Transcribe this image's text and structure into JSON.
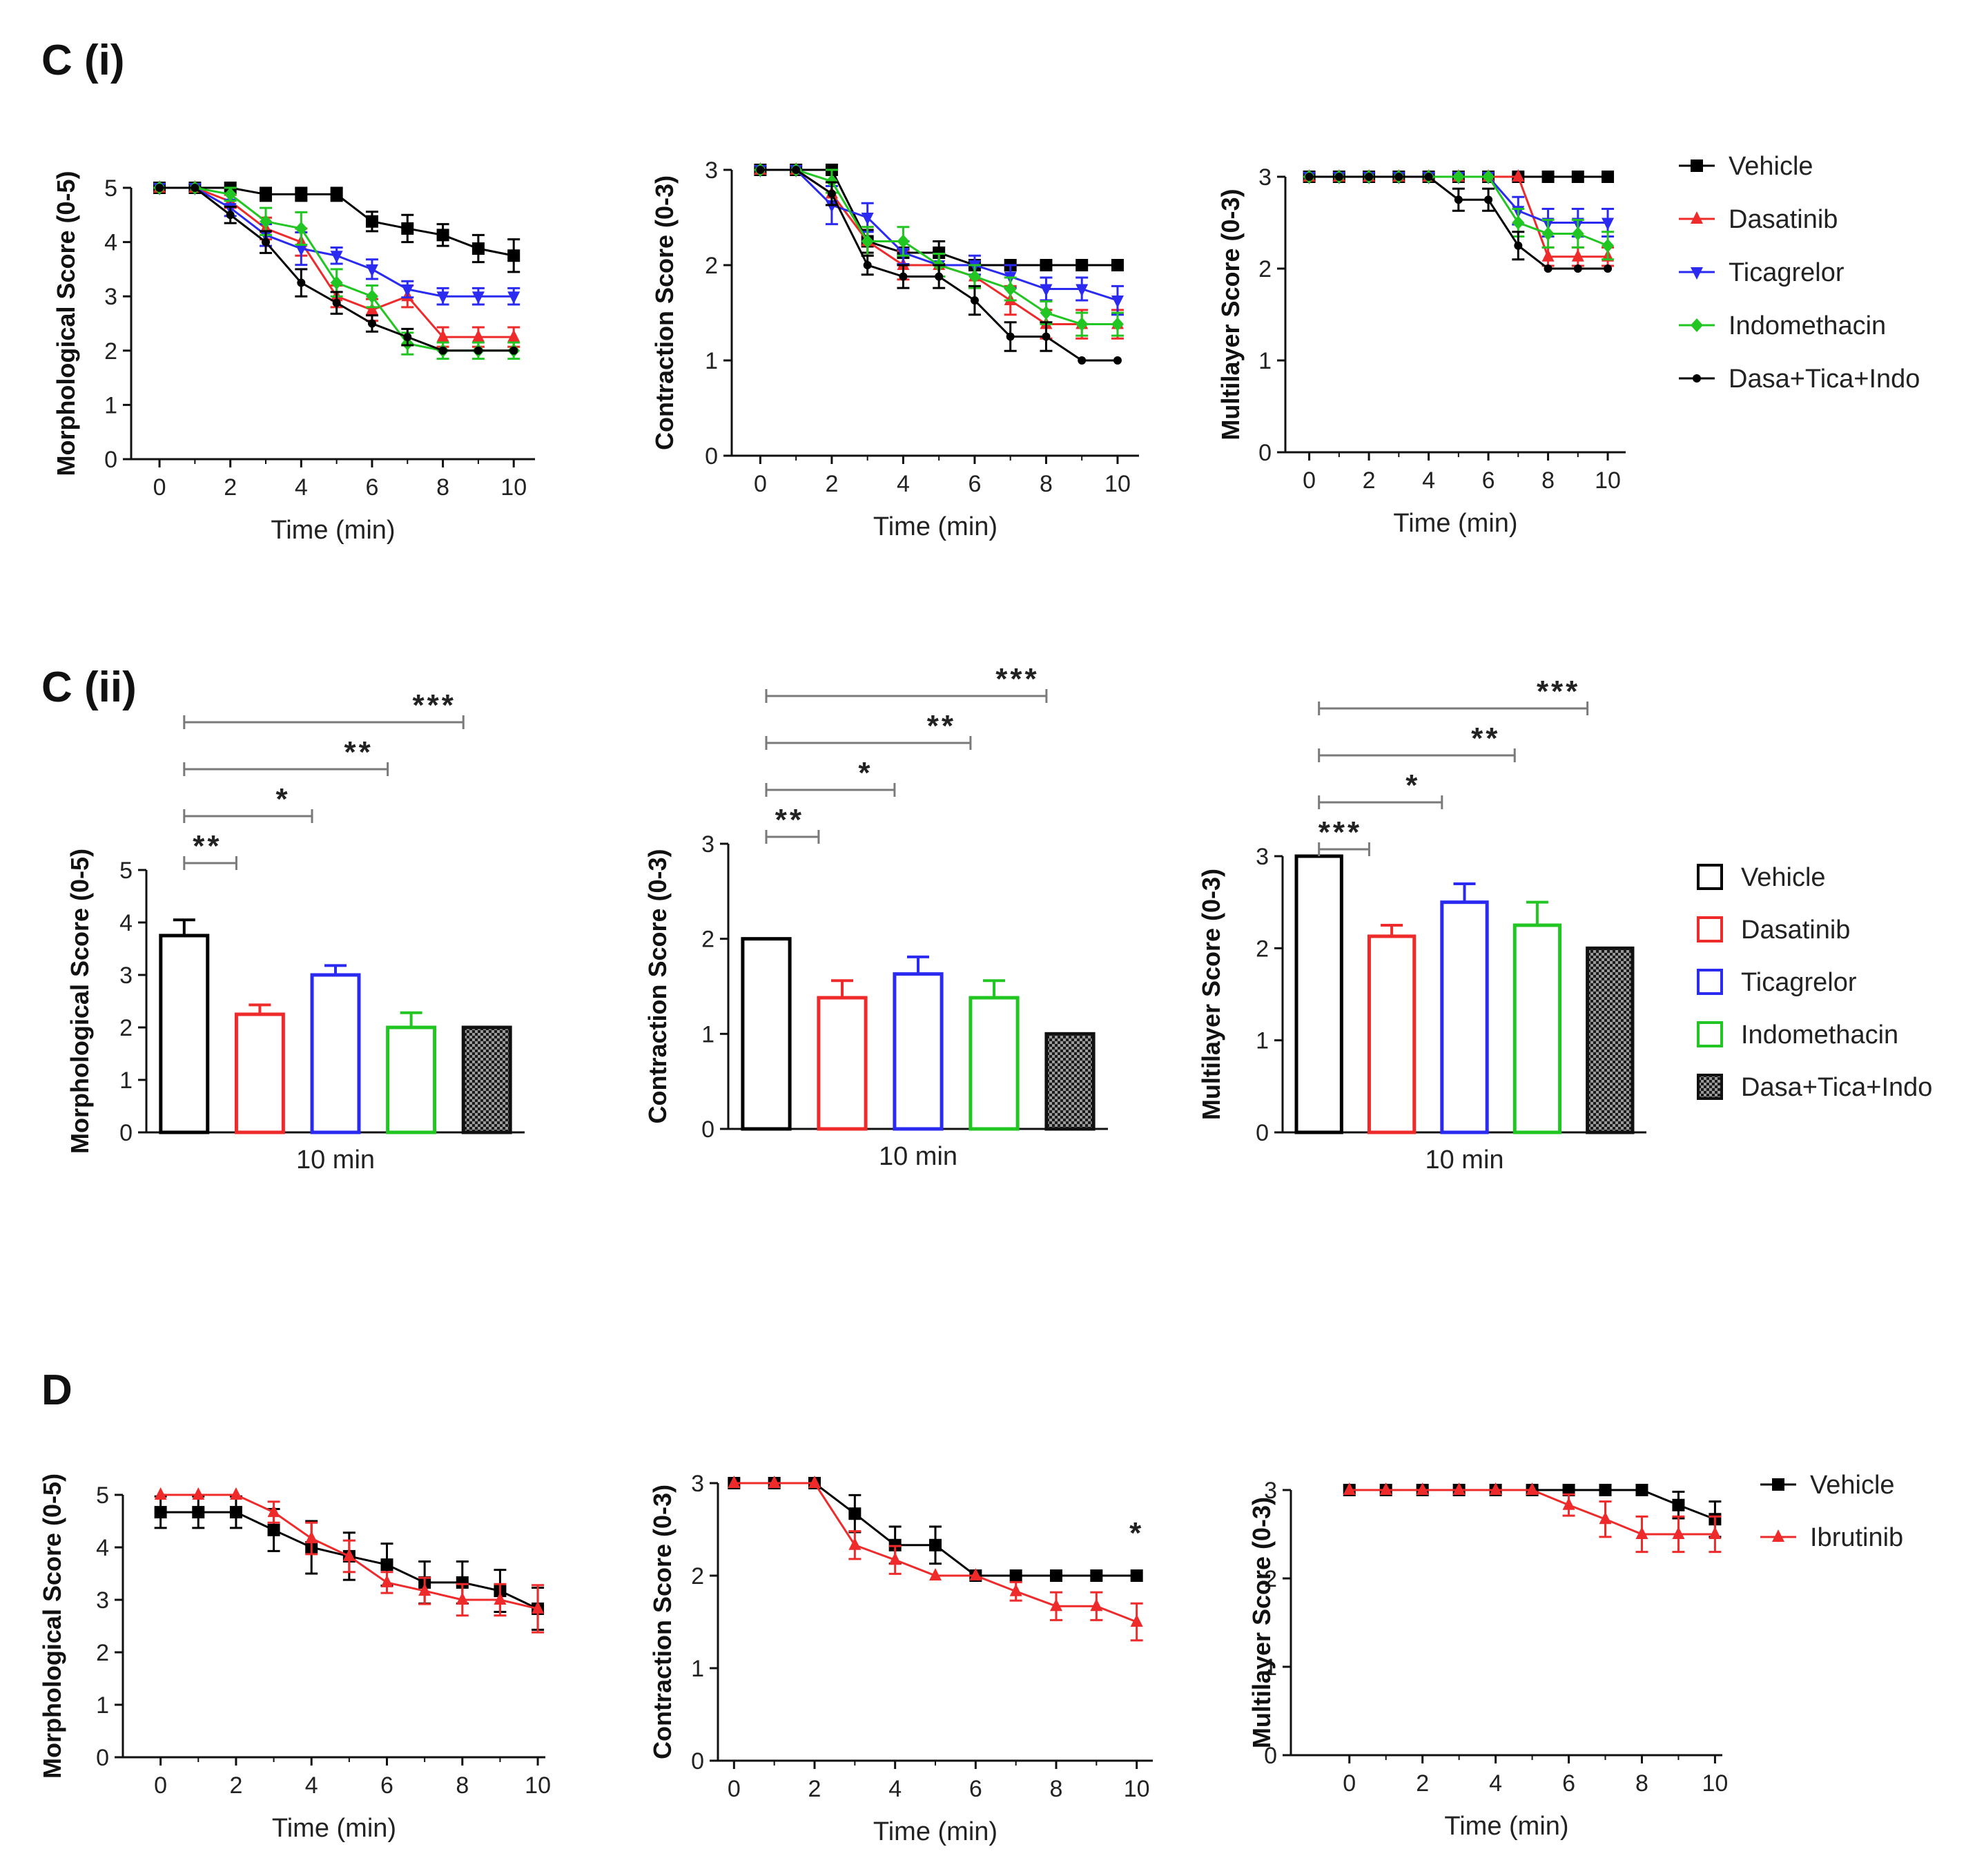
{
  "figure": {
    "panel_labels": [
      "C (i)",
      "C (ii)",
      "D"
    ]
  },
  "colors": {
    "Vehicle": "#000000",
    "Dasatinib": "#ee2a2a",
    "Ticagrelor": "#2a2af0",
    "Indomethacin": "#22c622",
    "Dasa+Tica+Indo": "#000000",
    "Ibrutinib": "#ee2a2a",
    "sigline": "#7a7a7a"
  },
  "chart_data": [
    {
      "id": "ci-morph",
      "type": "line",
      "title": "",
      "xlabel": "Time (min)",
      "ylabel": "Morphological Score (0-5)",
      "xlim": [
        -0.8,
        10.6
      ],
      "ylim": [
        0,
        5
      ],
      "xticks": [
        0,
        2,
        4,
        6,
        8,
        10
      ],
      "yticks": [
        0,
        1,
        2,
        3,
        4,
        5
      ],
      "x": [
        0,
        1,
        2,
        3,
        4,
        5,
        6,
        7,
        8,
        9,
        10
      ],
      "series": [
        {
          "name": "Vehicle",
          "marker": "square",
          "values": [
            5,
            5,
            5,
            4.88,
            4.88,
            4.88,
            4.38,
            4.25,
            4.13,
            3.88,
            3.75
          ],
          "errors": [
            0,
            0,
            0,
            0.12,
            0.12,
            0.12,
            0.18,
            0.25,
            0.2,
            0.25,
            0.3
          ]
        },
        {
          "name": "Dasatinib",
          "marker": "triangle",
          "values": [
            5,
            5,
            4.75,
            4.25,
            4.0,
            3.0,
            2.75,
            3.0,
            2.25,
            2.25,
            2.25
          ],
          "errors": [
            0,
            0,
            0.12,
            0.2,
            0.25,
            0.2,
            0.2,
            0.2,
            0.18,
            0.18,
            0.18
          ]
        },
        {
          "name": "Ticagrelor",
          "marker": "triangle-down",
          "values": [
            5,
            5,
            4.63,
            4.13,
            3.88,
            3.75,
            3.5,
            3.13,
            3.0,
            3.0,
            3.0
          ],
          "errors": [
            0,
            0,
            0.15,
            0.2,
            0.3,
            0.15,
            0.18,
            0.15,
            0.15,
            0.15,
            0.15
          ]
        },
        {
          "name": "Indomethacin",
          "marker": "diamond",
          "values": [
            5,
            5,
            4.88,
            4.38,
            4.25,
            3.25,
            3.0,
            2.13,
            2.0,
            2.0,
            2.0
          ],
          "errors": [
            0,
            0,
            0.12,
            0.25,
            0.3,
            0.25,
            0.2,
            0.2,
            0.15,
            0.15,
            0.15
          ]
        },
        {
          "name": "Dasa+Tica+Indo",
          "marker": "cross",
          "values": [
            5,
            5,
            4.5,
            4.0,
            3.25,
            2.88,
            2.5,
            2.25,
            2.0,
            2.0,
            2.0
          ],
          "errors": [
            0,
            0,
            0.15,
            0.2,
            0.25,
            0.2,
            0.15,
            0.15,
            0,
            0,
            0
          ]
        }
      ]
    },
    {
      "id": "ci-contr",
      "type": "line",
      "title": "",
      "xlabel": "Time (min)",
      "ylabel": "Contraction Score (0-3)",
      "xlim": [
        -0.8,
        10.6
      ],
      "ylim": [
        0,
        3
      ],
      "xticks": [
        0,
        2,
        4,
        6,
        8,
        10
      ],
      "yticks": [
        0,
        1,
        2,
        3
      ],
      "x": [
        0,
        1,
        2,
        3,
        4,
        5,
        6,
        7,
        8,
        9,
        10
      ],
      "series": [
        {
          "name": "Vehicle",
          "marker": "square",
          "values": [
            3,
            3,
            3,
            2.25,
            2.13,
            2.13,
            2.0,
            2.0,
            2.0,
            2.0,
            2.0
          ],
          "errors": [
            0,
            0,
            0,
            0.12,
            0.12,
            0.12,
            0,
            0,
            0,
            0,
            0
          ]
        },
        {
          "name": "Dasatinib",
          "marker": "triangle",
          "values": [
            3,
            3,
            2.75,
            2.25,
            2.0,
            2.0,
            1.88,
            1.63,
            1.38,
            1.38,
            1.38
          ],
          "errors": [
            0,
            0,
            0.12,
            0.15,
            0.15,
            0.12,
            0.12,
            0.15,
            0.15,
            0.15,
            0.15
          ]
        },
        {
          "name": "Ticagrelor",
          "marker": "triangle-down",
          "values": [
            3,
            3,
            2.63,
            2.5,
            2.13,
            2.0,
            2.0,
            1.88,
            1.75,
            1.75,
            1.63
          ],
          "errors": [
            0,
            0,
            0.2,
            0.15,
            0.12,
            0.12,
            0.1,
            0.12,
            0.12,
            0.12,
            0.15
          ]
        },
        {
          "name": "Indomethacin",
          "marker": "diamond",
          "values": [
            3,
            3,
            2.88,
            2.25,
            2.25,
            2.0,
            1.88,
            1.75,
            1.5,
            1.38,
            1.38
          ],
          "errors": [
            0,
            0,
            0.12,
            0.15,
            0.15,
            0.12,
            0.12,
            0.12,
            0.12,
            0.12,
            0.12
          ]
        },
        {
          "name": "Dasa+Tica+Indo",
          "marker": "cross",
          "values": [
            3,
            3,
            2.75,
            2.0,
            1.88,
            1.88,
            1.63,
            1.25,
            1.25,
            1.0,
            1.0
          ],
          "errors": [
            0,
            0,
            0.12,
            0.1,
            0.12,
            0.12,
            0.15,
            0.15,
            0.15,
            0,
            0
          ]
        }
      ]
    },
    {
      "id": "ci-multi",
      "type": "line",
      "title": "",
      "xlabel": "Time (min)",
      "ylabel": "Multilayer Score (0-3)",
      "xlim": [
        -0.8,
        10.6
      ],
      "ylim": [
        0,
        3
      ],
      "xticks": [
        0,
        2,
        4,
        6,
        8,
        10
      ],
      "yticks": [
        0,
        1,
        2,
        3
      ],
      "x": [
        0,
        1,
        2,
        3,
        4,
        5,
        6,
        7,
        8,
        9,
        10
      ],
      "series": [
        {
          "name": "Vehicle",
          "marker": "square",
          "values": [
            3,
            3,
            3,
            3,
            3,
            3,
            3,
            3,
            3,
            3,
            3
          ],
          "errors": [
            0,
            0,
            0,
            0,
            0,
            0,
            0,
            0,
            0,
            0,
            0
          ]
        },
        {
          "name": "Dasatinib",
          "marker": "triangle",
          "values": [
            3,
            3,
            3,
            3,
            3,
            3,
            3,
            3,
            2.13,
            2.13,
            2.13
          ],
          "errors": [
            0,
            0,
            0,
            0,
            0,
            0,
            0,
            0,
            0.1,
            0.1,
            0.1
          ]
        },
        {
          "name": "Ticagrelor",
          "marker": "triangle-down",
          "values": [
            3,
            3,
            3,
            3,
            3,
            3,
            3,
            2.63,
            2.5,
            2.5,
            2.5
          ],
          "errors": [
            0,
            0,
            0,
            0,
            0,
            0,
            0,
            0.15,
            0.15,
            0.15,
            0.15
          ]
        },
        {
          "name": "Indomethacin",
          "marker": "diamond",
          "values": [
            3,
            3,
            3,
            3,
            3,
            3,
            3,
            2.5,
            2.38,
            2.38,
            2.25
          ],
          "errors": [
            0,
            0,
            0,
            0,
            0,
            0,
            0,
            0.15,
            0.15,
            0.15,
            0.15
          ]
        },
        {
          "name": "Dasa+Tica+Indo",
          "marker": "cross",
          "values": [
            3,
            3,
            3,
            3,
            3,
            2.75,
            2.75,
            2.25,
            2.0,
            2.0,
            2.0
          ],
          "errors": [
            0,
            0,
            0,
            0,
            0,
            0.12,
            0.12,
            0.15,
            0,
            0,
            0
          ]
        }
      ]
    },
    {
      "id": "cii-morph",
      "type": "bar",
      "xlabel": "10 min",
      "ylabel": "Morphological Score (0-5)",
      "ylim": [
        0,
        5
      ],
      "yticks": [
        0,
        1,
        2,
        3,
        4,
        5
      ],
      "categories": [
        "Vehicle",
        "Dasatinib",
        "Ticagrelor",
        "Indomethacin",
        "Dasa+Tica+Indo"
      ],
      "values": [
        3.75,
        2.25,
        3.0,
        2.0,
        2.0
      ],
      "errors": [
        0.3,
        0.18,
        0.18,
        0.28,
        0
      ],
      "significance": [
        {
          "from": 0,
          "to": 1,
          "label": "**"
        },
        {
          "from": 0,
          "to": 2,
          "label": "*"
        },
        {
          "from": 0,
          "to": 3,
          "label": "**"
        },
        {
          "from": 0,
          "to": 4,
          "label": "***"
        }
      ]
    },
    {
      "id": "cii-contr",
      "type": "bar",
      "xlabel": "10 min",
      "ylabel": "Contraction Score (0-3)",
      "ylim": [
        0,
        3
      ],
      "yticks": [
        0,
        1,
        2,
        3
      ],
      "categories": [
        "Vehicle",
        "Dasatinib",
        "Ticagrelor",
        "Indomethacin",
        "Dasa+Tica+Indo"
      ],
      "values": [
        2.0,
        1.38,
        1.63,
        1.38,
        1.0
      ],
      "errors": [
        0,
        0.18,
        0.18,
        0.18,
        0
      ],
      "significance": [
        {
          "from": 0,
          "to": 1,
          "label": "**"
        },
        {
          "from": 0,
          "to": 2,
          "label": "*"
        },
        {
          "from": 0,
          "to": 3,
          "label": "**"
        },
        {
          "from": 0,
          "to": 4,
          "label": "***"
        }
      ]
    },
    {
      "id": "cii-multi",
      "type": "bar",
      "xlabel": "10 min",
      "ylabel": "Multilayer Score (0-3)",
      "ylim": [
        0,
        3
      ],
      "yticks": [
        0,
        1,
        2,
        3
      ],
      "categories": [
        "Vehicle",
        "Dasatinib",
        "Ticagrelor",
        "Indomethacin",
        "Dasa+Tica+Indo"
      ],
      "values": [
        3.0,
        2.13,
        2.5,
        2.25,
        2.0
      ],
      "errors": [
        0,
        0.12,
        0.2,
        0.25,
        0
      ],
      "significance": [
        {
          "from": 0,
          "to": 1,
          "label": "***"
        },
        {
          "from": 0,
          "to": 2,
          "label": "*"
        },
        {
          "from": 0,
          "to": 3,
          "label": "**"
        },
        {
          "from": 0,
          "to": 4,
          "label": "***"
        }
      ]
    },
    {
      "id": "d-morph",
      "type": "line",
      "xlabel": "Time (min)",
      "ylabel": "Morphological Score (0-5)",
      "xlim": [
        -1.0,
        10.2
      ],
      "ylim": [
        0,
        5
      ],
      "xticks": [
        0,
        2,
        4,
        6,
        8,
        10
      ],
      "yticks": [
        0,
        1,
        2,
        3,
        4,
        5
      ],
      "x": [
        0,
        1,
        2,
        3,
        4,
        5,
        6,
        7,
        8,
        9,
        10
      ],
      "series": [
        {
          "name": "Vehicle",
          "marker": "square",
          "values": [
            4.67,
            4.67,
            4.67,
            4.33,
            4.0,
            3.83,
            3.67,
            3.33,
            3.33,
            3.17,
            2.83
          ],
          "errors": [
            0.3,
            0.3,
            0.3,
            0.4,
            0.5,
            0.45,
            0.4,
            0.4,
            0.4,
            0.4,
            0.4
          ]
        },
        {
          "name": "Ibrutinib",
          "marker": "triangle",
          "values": [
            5,
            5,
            5,
            4.67,
            4.17,
            3.83,
            3.33,
            3.17,
            3.0,
            3.0,
            2.83
          ],
          "errors": [
            0,
            0,
            0,
            0.2,
            0.3,
            0.3,
            0.2,
            0.25,
            0.3,
            0.3,
            0.45
          ]
        }
      ]
    },
    {
      "id": "d-contr",
      "type": "line",
      "xlabel": "Time (min)",
      "ylabel": "Contraction Score (0-3)",
      "xlim": [
        -0.4,
        10.4
      ],
      "ylim": [
        0,
        3
      ],
      "xticks": [
        0,
        2,
        4,
        6,
        8,
        10
      ],
      "yticks": [
        0,
        1,
        2,
        3
      ],
      "x": [
        0,
        1,
        2,
        3,
        4,
        5,
        6,
        7,
        8,
        9,
        10
      ],
      "series": [
        {
          "name": "Vehicle",
          "marker": "square",
          "values": [
            3,
            3,
            3,
            2.67,
            2.33,
            2.33,
            2.0,
            2.0,
            2.0,
            2.0,
            2.0
          ],
          "errors": [
            0,
            0,
            0,
            0.2,
            0.2,
            0.2,
            0,
            0,
            0,
            0,
            0
          ]
        },
        {
          "name": "Ibrutinib",
          "marker": "triangle",
          "values": [
            3,
            3,
            3,
            2.33,
            2.17,
            2.0,
            2.0,
            1.83,
            1.67,
            1.67,
            1.5
          ],
          "errors": [
            0,
            0,
            0,
            0.15,
            0.15,
            0,
            0,
            0.1,
            0.15,
            0.15,
            0.2
          ]
        }
      ],
      "annotations": [
        {
          "x": 10,
          "y": 2.35,
          "text": "*"
        }
      ]
    },
    {
      "id": "d-multi",
      "type": "line",
      "xlabel": "Time (min)",
      "ylabel": "Multilayer Score (0-3)",
      "xlim": [
        -1.6,
        10.2
      ],
      "ylim": [
        0,
        3
      ],
      "xticks": [
        0,
        2,
        4,
        6,
        8,
        10
      ],
      "yticks": [
        0,
        1,
        2,
        3
      ],
      "x": [
        0,
        1,
        2,
        3,
        4,
        5,
        6,
        7,
        8,
        9,
        10
      ],
      "series": [
        {
          "name": "Vehicle",
          "marker": "square",
          "values": [
            3,
            3,
            3,
            3,
            3,
            3,
            3,
            3,
            3,
            2.83,
            2.67
          ],
          "errors": [
            0,
            0,
            0,
            0,
            0,
            0,
            0,
            0,
            0,
            0.15,
            0.2
          ]
        },
        {
          "name": "Ibrutinib",
          "marker": "triangle",
          "values": [
            3,
            3,
            3,
            3,
            3,
            3,
            2.83,
            2.67,
            2.5,
            2.5,
            2.5
          ],
          "errors": [
            0,
            0,
            0,
            0,
            0,
            0,
            0.12,
            0.2,
            0.2,
            0.2,
            0.2
          ]
        }
      ]
    }
  ],
  "legends": {
    "ci": [
      "Vehicle",
      "Dasatinib",
      "Ticagrelor",
      "Indomethacin",
      "Dasa+Tica+Indo"
    ],
    "cii": [
      "Vehicle",
      "Dasatinib",
      "Ticagrelor",
      "Indomethacin",
      "Dasa+Tica+Indo"
    ],
    "d": [
      "Vehicle",
      "Ibrutinib"
    ]
  }
}
